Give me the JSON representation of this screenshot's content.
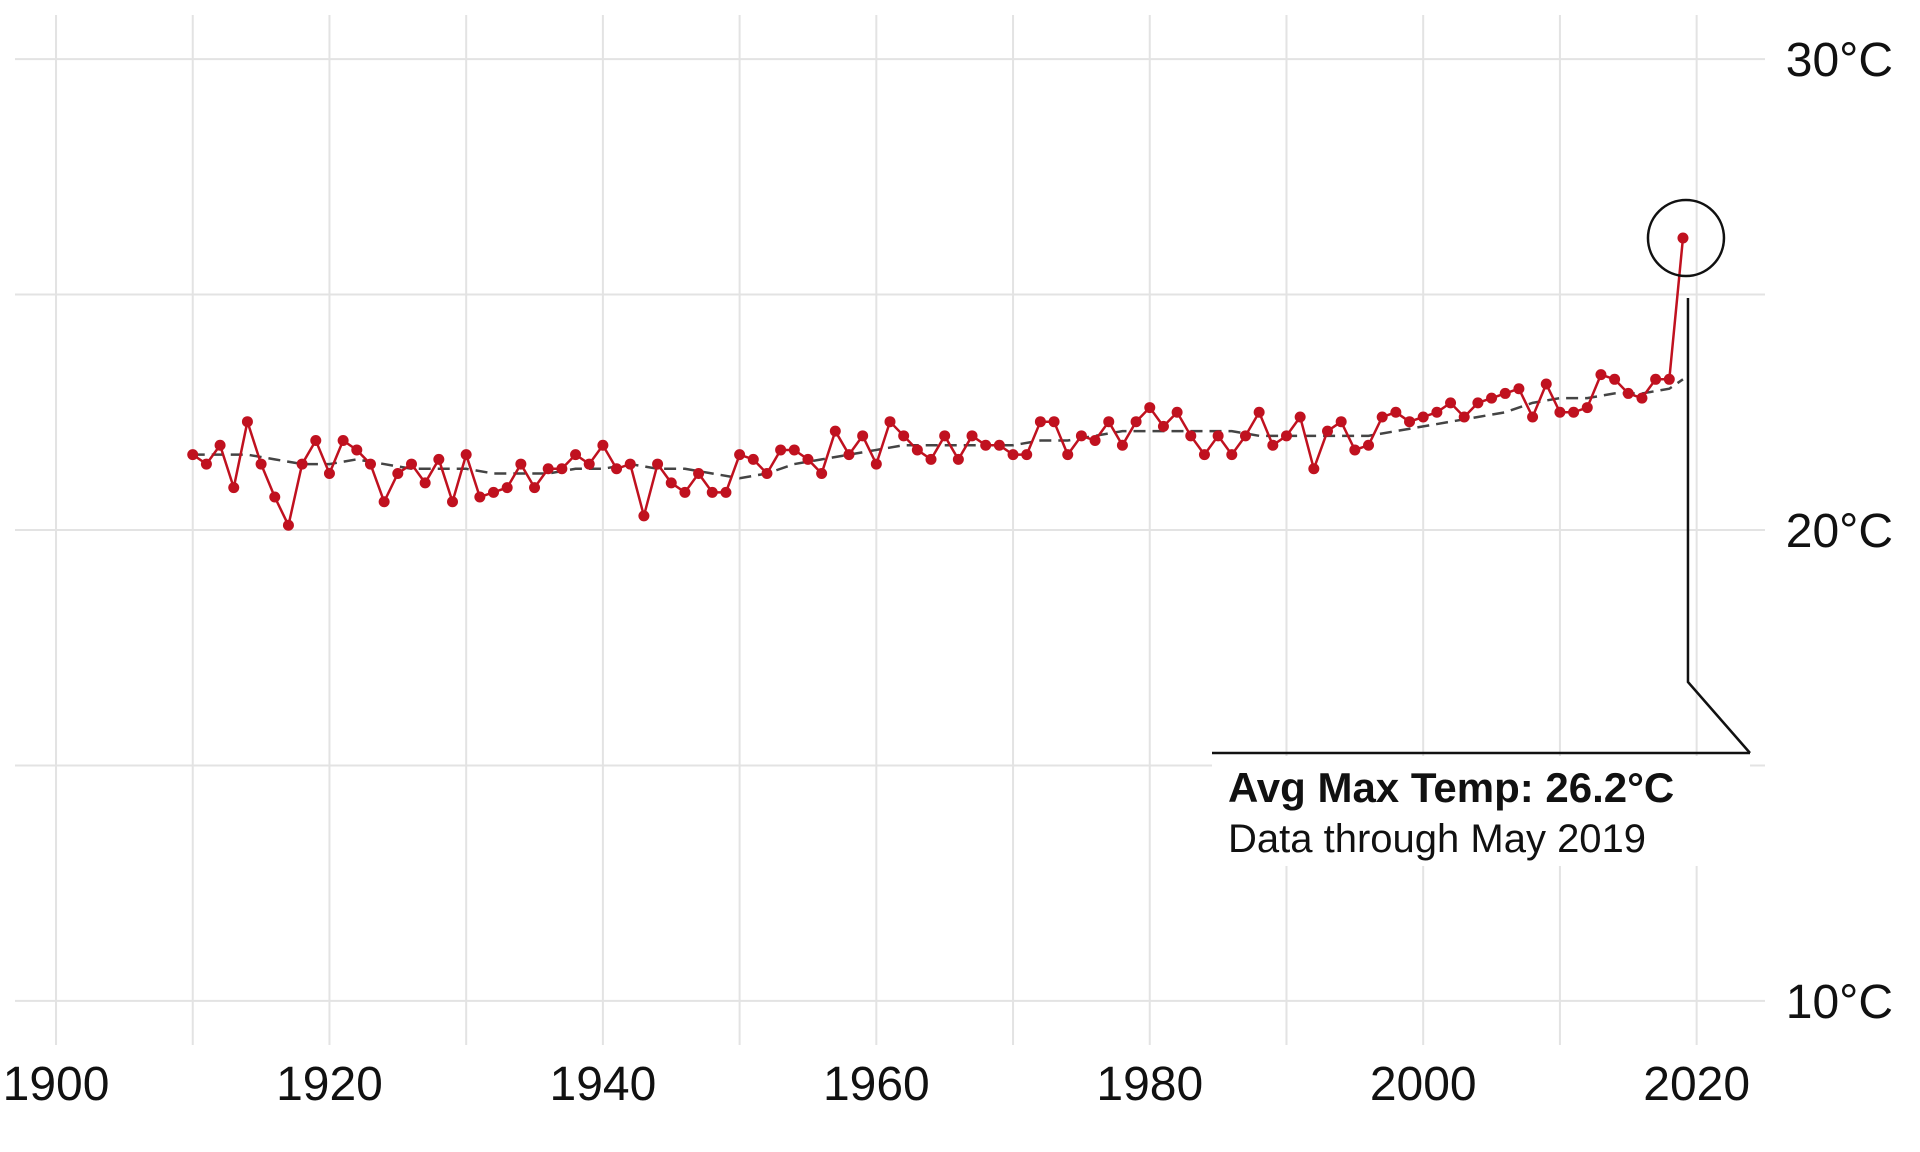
{
  "chart_data": {
    "type": "line",
    "title": "",
    "xlabel": "",
    "ylabel": "",
    "xlim": [
      1897,
      2025
    ],
    "ylim": [
      9,
      31
    ],
    "grid": true,
    "y_ticks": [
      10,
      20,
      30
    ],
    "y_tick_labels": [
      "10°C",
      "20°C",
      "30°C"
    ],
    "y_minor_gridlines": [
      15,
      25
    ],
    "x_ticks": [
      1900,
      1920,
      1940,
      1960,
      1980,
      2000,
      2020
    ],
    "x_tick_labels": [
      "1900",
      "1920",
      "1940",
      "1960",
      "1980",
      "2000",
      "2020"
    ],
    "colors": {
      "series": "#c0111f",
      "trend": "#444444",
      "grid": "#e3e3e3",
      "text": "#111111"
    },
    "series": [
      {
        "style": "line-with-points",
        "x": [
          1910,
          1911,
          1912,
          1913,
          1914,
          1915,
          1916,
          1917,
          1918,
          1919,
          1920,
          1921,
          1922,
          1923,
          1924,
          1925,
          1926,
          1927,
          1928,
          1929,
          1930,
          1931,
          1932,
          1933,
          1934,
          1935,
          1936,
          1937,
          1938,
          1939,
          1940,
          1941,
          1942,
          1943,
          1944,
          1945,
          1946,
          1947,
          1948,
          1949,
          1950,
          1951,
          1952,
          1953,
          1954,
          1955,
          1956,
          1957,
          1958,
          1959,
          1960,
          1961,
          1962,
          1963,
          1964,
          1965,
          1966,
          1967,
          1968,
          1969,
          1970,
          1971,
          1972,
          1973,
          1974,
          1975,
          1976,
          1977,
          1978,
          1979,
          1980,
          1981,
          1982,
          1983,
          1984,
          1985,
          1986,
          1987,
          1988,
          1989,
          1990,
          1991,
          1992,
          1993,
          1994,
          1995,
          1996,
          1997,
          1998,
          1999,
          2000,
          2001,
          2002,
          2003,
          2004,
          2005,
          2006,
          2007,
          2008,
          2009,
          2010,
          2011,
          2012,
          2013,
          2014,
          2015,
          2016,
          2017,
          2018,
          2019
        ],
        "values": [
          21.6,
          21.4,
          21.8,
          20.9,
          22.3,
          21.4,
          20.7,
          20.1,
          21.4,
          21.9,
          21.2,
          21.9,
          21.7,
          21.4,
          20.6,
          21.2,
          21.4,
          21.0,
          21.5,
          20.6,
          21.6,
          20.7,
          20.8,
          20.9,
          21.4,
          20.9,
          21.3,
          21.3,
          21.6,
          21.4,
          21.8,
          21.3,
          21.4,
          20.3,
          21.4,
          21.0,
          20.8,
          21.2,
          20.8,
          20.8,
          21.6,
          21.5,
          21.2,
          21.7,
          21.7,
          21.5,
          21.2,
          22.1,
          21.6,
          22.0,
          21.4,
          22.3,
          22.0,
          21.7,
          21.5,
          22.0,
          21.5,
          22.0,
          21.8,
          21.8,
          21.6,
          21.6,
          22.3,
          22.3,
          21.6,
          22.0,
          21.9,
          22.3,
          21.8,
          22.3,
          22.6,
          22.2,
          22.5,
          22.0,
          21.6,
          22.0,
          21.6,
          22.0,
          22.5,
          21.8,
          22.0,
          22.4,
          21.3,
          22.1,
          22.3,
          21.7,
          21.8,
          22.4,
          22.5,
          22.3,
          22.4,
          22.5,
          22.7,
          22.4,
          22.7,
          22.8,
          22.9,
          23.0,
          22.4,
          23.1,
          22.5,
          22.5,
          22.6,
          23.3,
          23.2,
          22.9,
          22.8,
          23.2,
          23.2,
          26.2
        ]
      },
      {
        "style": "dashed-trend",
        "x": [
          1910,
          1912,
          1914,
          1916,
          1918,
          1920,
          1922,
          1924,
          1926,
          1928,
          1930,
          1932,
          1934,
          1936,
          1938,
          1940,
          1942,
          1944,
          1946,
          1948,
          1950,
          1952,
          1954,
          1956,
          1958,
          1960,
          1962,
          1964,
          1966,
          1968,
          1970,
          1972,
          1974,
          1976,
          1978,
          1980,
          1982,
          1984,
          1986,
          1988,
          1990,
          1992,
          1994,
          1996,
          1998,
          2000,
          2002,
          2004,
          2006,
          2008,
          2010,
          2012,
          2014,
          2016,
          2018,
          2019
        ],
        "values": [
          21.6,
          21.6,
          21.6,
          21.5,
          21.4,
          21.4,
          21.5,
          21.4,
          21.3,
          21.3,
          21.3,
          21.2,
          21.2,
          21.2,
          21.3,
          21.3,
          21.4,
          21.3,
          21.3,
          21.2,
          21.1,
          21.2,
          21.4,
          21.5,
          21.6,
          21.7,
          21.8,
          21.8,
          21.8,
          21.8,
          21.8,
          21.9,
          21.9,
          22.0,
          22.1,
          22.1,
          22.1,
          22.1,
          22.1,
          22.0,
          22.0,
          22.0,
          22.0,
          22.0,
          22.1,
          22.2,
          22.3,
          22.4,
          22.5,
          22.7,
          22.8,
          22.8,
          22.9,
          22.9,
          23.0,
          23.2
        ]
      }
    ],
    "annotation": {
      "highlight_x": 2019,
      "highlight_y": 26.2,
      "title": "Avg Max Temp: 26.2°C",
      "subtitle": "Data through May 2019"
    }
  }
}
